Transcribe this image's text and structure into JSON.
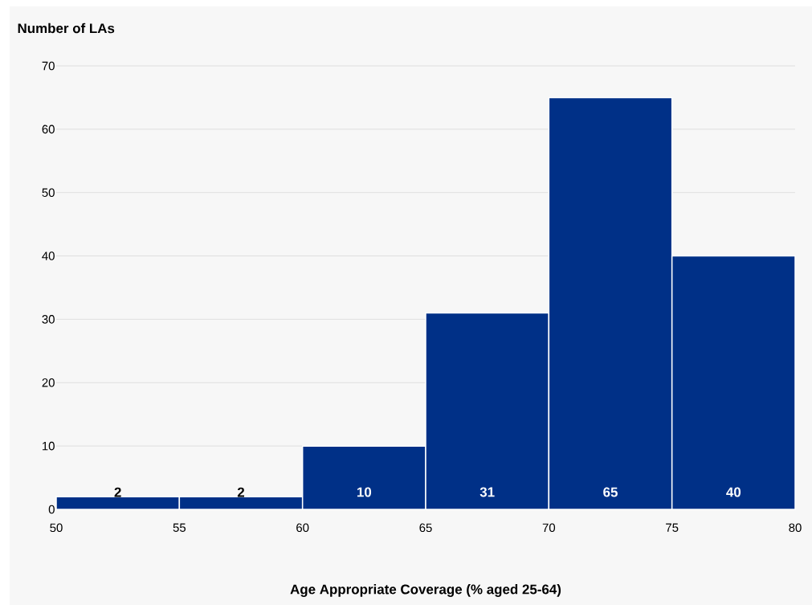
{
  "chart_data": {
    "type": "histogram",
    "ylabel": "Number of LAs",
    "xlabel": "Age Appropriate Coverage  (% aged 25-64)",
    "bins": [
      50,
      55,
      60,
      65,
      70,
      75,
      80
    ],
    "values": [
      2,
      2,
      10,
      31,
      65,
      40
    ],
    "color": "#003087",
    "xlim": [
      50,
      80
    ],
    "xticks": [
      50,
      55,
      60,
      65,
      70,
      75,
      80
    ],
    "ylim": [
      0,
      70
    ],
    "yticks": [
      0,
      10,
      20,
      30,
      40,
      50,
      60,
      70
    ],
    "grid": "y",
    "data_labels": true
  }
}
